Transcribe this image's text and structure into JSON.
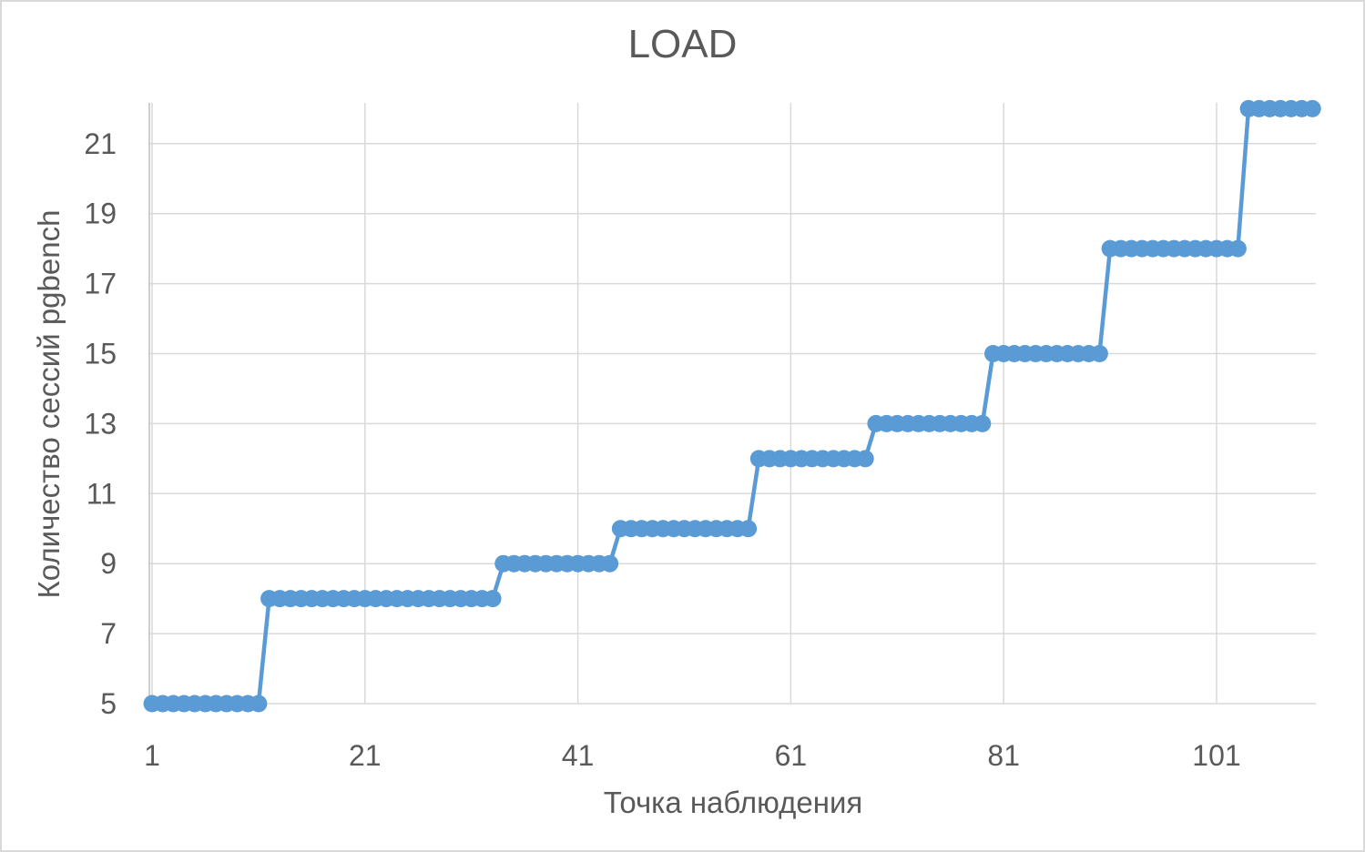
{
  "colors": {
    "series": "#5B9BD5",
    "gridline": "#D9D9D9",
    "axis_line": "#BFBFBF",
    "text": "#595959",
    "canvas_border": "#D9D9D9",
    "background": "#FFFFFF"
  },
  "chart_data": {
    "type": "line",
    "title": "LOAD",
    "xlabel": "Точка наблюдения",
    "ylabel": "Количество сессий pgbench",
    "x_ticks": [
      1,
      21,
      41,
      61,
      81,
      101
    ],
    "y_ticks": [
      5,
      7,
      9,
      11,
      13,
      15,
      17,
      19,
      21
    ],
    "xlim": [
      1,
      110
    ],
    "ylim": [
      5,
      22.2
    ],
    "grid": true,
    "legend": false,
    "series": [
      {
        "name": "LOAD",
        "color": "#5B9BD5",
        "marker": "circle",
        "x_start": 1,
        "steps": [
          {
            "value": 5,
            "from": 1,
            "to": 11
          },
          {
            "value": 8,
            "from": 12,
            "to": 33
          },
          {
            "value": 9,
            "from": 34,
            "to": 44
          },
          {
            "value": 10,
            "from": 45,
            "to": 57
          },
          {
            "value": 12,
            "from": 58,
            "to": 68
          },
          {
            "value": 13,
            "from": 69,
            "to": 79
          },
          {
            "value": 15,
            "from": 80,
            "to": 90
          },
          {
            "value": 18,
            "from": 91,
            "to": 103
          },
          {
            "value": 22,
            "from": 104,
            "to": 110
          }
        ],
        "values": [
          5,
          5,
          5,
          5,
          5,
          5,
          5,
          5,
          5,
          5,
          5,
          8,
          8,
          8,
          8,
          8,
          8,
          8,
          8,
          8,
          8,
          8,
          8,
          8,
          8,
          8,
          8,
          8,
          8,
          8,
          8,
          8,
          8,
          9,
          9,
          9,
          9,
          9,
          9,
          9,
          9,
          9,
          9,
          9,
          10,
          10,
          10,
          10,
          10,
          10,
          10,
          10,
          10,
          10,
          10,
          10,
          10,
          12,
          12,
          12,
          12,
          12,
          12,
          12,
          12,
          12,
          12,
          12,
          13,
          13,
          13,
          13,
          13,
          13,
          13,
          13,
          13,
          13,
          13,
          15,
          15,
          15,
          15,
          15,
          15,
          15,
          15,
          15,
          15,
          15,
          18,
          18,
          18,
          18,
          18,
          18,
          18,
          18,
          18,
          18,
          18,
          18,
          18,
          22,
          22,
          22,
          22,
          22,
          22,
          22
        ]
      }
    ]
  }
}
